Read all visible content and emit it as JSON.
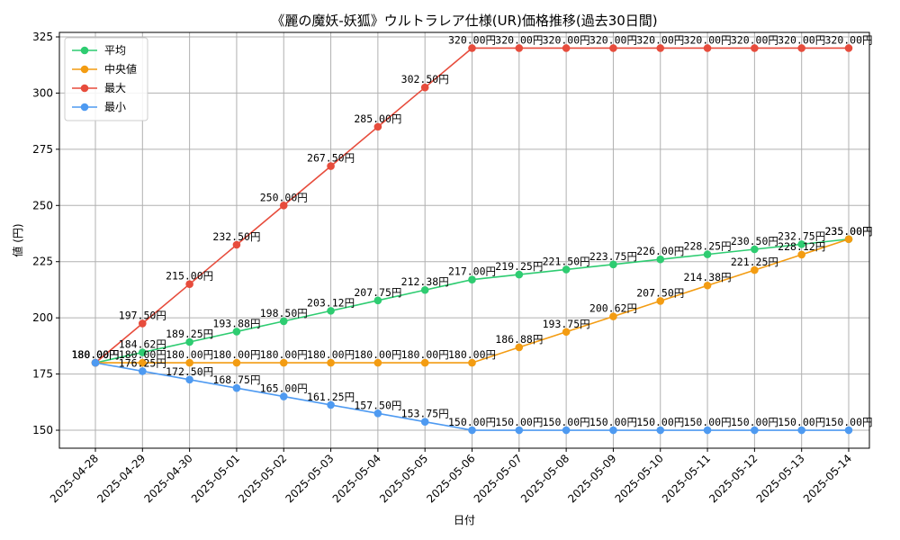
{
  "chart_data": {
    "type": "line",
    "title": "《麗の魔妖-妖狐》ウルトラレア仕様(UR)価格推移(過去30日間)",
    "xlabel": "日付",
    "ylabel": "値 (円)",
    "x": [
      "2025-04-28",
      "2025-04-29",
      "2025-04-30",
      "2025-05-01",
      "2025-05-02",
      "2025-05-03",
      "2025-05-04",
      "2025-05-05",
      "2025-05-06",
      "2025-05-07",
      "2025-05-08",
      "2025-05-09",
      "2025-05-10",
      "2025-05-11",
      "2025-05-12",
      "2025-05-13",
      "2025-05-14"
    ],
    "ylim": [
      142,
      327
    ],
    "yticks": [
      150,
      175,
      200,
      225,
      250,
      275,
      300,
      325
    ],
    "grid": true,
    "legend_position": "top-left",
    "label_suffix": "円",
    "series": [
      {
        "name": "平均",
        "color": "#2ecc71",
        "values": [
          180.0,
          184.62,
          189.25,
          193.88,
          198.5,
          203.12,
          207.75,
          212.38,
          217.0,
          219.25,
          221.5,
          223.75,
          226.0,
          228.25,
          230.5,
          232.75,
          235.0
        ]
      },
      {
        "name": "中央値",
        "color": "#f39c12",
        "values": [
          180.0,
          180.0,
          180.0,
          180.0,
          180.0,
          180.0,
          180.0,
          180.0,
          180.0,
          186.88,
          193.75,
          200.62,
          207.5,
          214.38,
          221.25,
          228.12,
          235.0
        ]
      },
      {
        "name": "最大",
        "color": "#e74c3c",
        "values": [
          180.0,
          197.5,
          215.0,
          232.5,
          250.0,
          267.5,
          285.0,
          302.5,
          320.0,
          320.0,
          320.0,
          320.0,
          320.0,
          320.0,
          320.0,
          320.0,
          320.0
        ]
      },
      {
        "name": "最小",
        "color": "#4e9af1",
        "values": [
          180.0,
          176.25,
          172.5,
          168.75,
          165.0,
          161.25,
          157.5,
          153.75,
          150.0,
          150.0,
          150.0,
          150.0,
          150.0,
          150.0,
          150.0,
          150.0,
          150.0
        ]
      }
    ]
  }
}
